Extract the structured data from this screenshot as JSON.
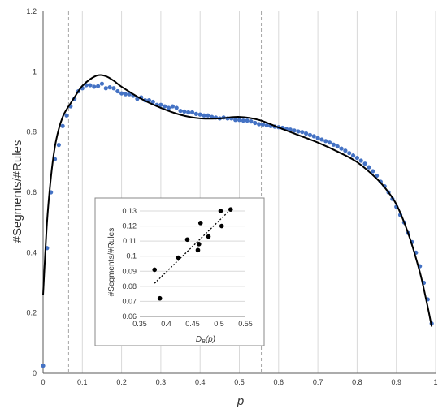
{
  "chart_data": [
    {
      "type": "scatter",
      "xlabel": "p",
      "ylabel": "#Segments/#Rules",
      "xlim": [
        0,
        1
      ],
      "ylim": [
        0,
        1.2
      ],
      "x_ticks": [
        "0",
        "0.1",
        "0.2",
        "0.3",
        "0.4",
        "0.5",
        "0.6",
        "0.7",
        "0.8",
        "0.9",
        "1"
      ],
      "y_ticks": [
        "0",
        "0.2",
        "0.4",
        "0.6",
        "0.8",
        "1",
        "1.2"
      ],
      "grid": "vertical",
      "reference_lines_x": [
        0.065,
        0.556
      ],
      "colors": {
        "points": "#4472C4",
        "fit_curve": "#000000",
        "reference_lines": "#a6a6a6"
      },
      "series": [
        {
          "type": "scatter",
          "x": [
            0.0,
            0.01,
            0.02,
            0.03,
            0.04,
            0.05,
            0.06,
            0.07,
            0.08,
            0.09,
            0.1,
            0.11,
            0.12,
            0.13,
            0.14,
            0.15,
            0.16,
            0.17,
            0.18,
            0.19,
            0.2,
            0.21,
            0.22,
            0.23,
            0.24,
            0.25,
            0.26,
            0.27,
            0.28,
            0.29,
            0.3,
            0.31,
            0.32,
            0.33,
            0.34,
            0.35,
            0.36,
            0.37,
            0.38,
            0.39,
            0.4,
            0.41,
            0.42,
            0.43,
            0.44,
            0.45,
            0.46,
            0.47,
            0.48,
            0.49,
            0.5,
            0.51,
            0.52,
            0.53,
            0.54,
            0.55,
            0.56,
            0.57,
            0.58,
            0.59,
            0.6,
            0.61,
            0.62,
            0.63,
            0.64,
            0.65,
            0.66,
            0.67,
            0.68,
            0.69,
            0.7,
            0.71,
            0.72,
            0.73,
            0.74,
            0.75,
            0.76,
            0.77,
            0.78,
            0.79,
            0.8,
            0.81,
            0.82,
            0.83,
            0.84,
            0.85,
            0.86,
            0.87,
            0.88,
            0.89,
            0.9,
            0.91,
            0.92,
            0.93,
            0.94,
            0.95,
            0.96,
            0.97,
            0.98,
            0.99
          ],
          "y": [
            0.025,
            0.415,
            0.6,
            0.71,
            0.757,
            0.82,
            0.855,
            0.885,
            0.91,
            0.935,
            0.945,
            0.955,
            0.955,
            0.95,
            0.952,
            0.96,
            0.945,
            0.948,
            0.945,
            0.935,
            0.928,
            0.925,
            0.925,
            0.92,
            0.91,
            0.915,
            0.905,
            0.905,
            0.9,
            0.89,
            0.89,
            0.885,
            0.88,
            0.885,
            0.88,
            0.87,
            0.868,
            0.865,
            0.865,
            0.86,
            0.858,
            0.855,
            0.855,
            0.85,
            0.848,
            0.845,
            0.848,
            0.845,
            0.845,
            0.84,
            0.84,
            0.838,
            0.838,
            0.835,
            0.83,
            0.826,
            0.825,
            0.822,
            0.82,
            0.818,
            0.816,
            0.814,
            0.81,
            0.808,
            0.805,
            0.802,
            0.8,
            0.795,
            0.79,
            0.786,
            0.78,
            0.775,
            0.77,
            0.765,
            0.758,
            0.752,
            0.745,
            0.738,
            0.73,
            0.722,
            0.714,
            0.705,
            0.695,
            0.683,
            0.67,
            0.655,
            0.635,
            0.62,
            0.6,
            0.578,
            0.552,
            0.525,
            0.5,
            0.465,
            0.435,
            0.4,
            0.355,
            0.3,
            0.245,
            0.165
          ]
        },
        {
          "type": "line",
          "x": [
            0.0,
            0.01,
            0.02,
            0.03,
            0.04,
            0.05,
            0.06,
            0.07,
            0.08,
            0.09,
            0.1,
            0.12,
            0.14,
            0.16,
            0.18,
            0.2,
            0.25,
            0.3,
            0.35,
            0.4,
            0.45,
            0.5,
            0.55,
            0.6,
            0.65,
            0.7,
            0.75,
            0.8,
            0.85,
            0.88,
            0.9,
            0.92,
            0.94,
            0.96,
            0.97,
            0.98,
            0.99
          ],
          "y": [
            0.26,
            0.5,
            0.65,
            0.75,
            0.81,
            0.85,
            0.875,
            0.895,
            0.915,
            0.935,
            0.953,
            0.975,
            0.988,
            0.985,
            0.97,
            0.95,
            0.91,
            0.88,
            0.857,
            0.845,
            0.845,
            0.85,
            0.84,
            0.815,
            0.79,
            0.765,
            0.735,
            0.7,
            0.645,
            0.6,
            0.56,
            0.5,
            0.425,
            0.335,
            0.28,
            0.22,
            0.155
          ]
        }
      ]
    },
    {
      "type": "scatter",
      "xlabel": "D_B(p)",
      "ylabel": "#Segments/#Rules",
      "xlim": [
        0.35,
        0.55
      ],
      "ylim": [
        0.06,
        0.13
      ],
      "x_ticks": [
        "0.35",
        "0.4",
        "0.45",
        "0.5",
        "0.55"
      ],
      "y_ticks": [
        "0.06",
        "0.07",
        "0.08",
        "0.09",
        "0.1",
        "0.11",
        "0.12",
        "0.13"
      ],
      "grid": "horizontal",
      "colors": {
        "points": "#000000",
        "trendline": "#000000"
      },
      "series": [
        {
          "type": "scatter",
          "x": [
            0.378,
            0.388,
            0.423,
            0.44,
            0.46,
            0.462,
            0.465,
            0.48,
            0.503,
            0.505,
            0.522
          ],
          "y": [
            0.091,
            0.072,
            0.099,
            0.111,
            0.104,
            0.108,
            0.122,
            0.113,
            0.13,
            0.12,
            0.131
          ]
        },
        {
          "type": "line",
          "x": [
            0.378,
            0.522
          ],
          "y": [
            0.082,
            0.131
          ]
        }
      ],
      "xlabel_main": "D",
      "xlabel_sub": "B",
      "xlabel_tail": "(p)"
    }
  ]
}
